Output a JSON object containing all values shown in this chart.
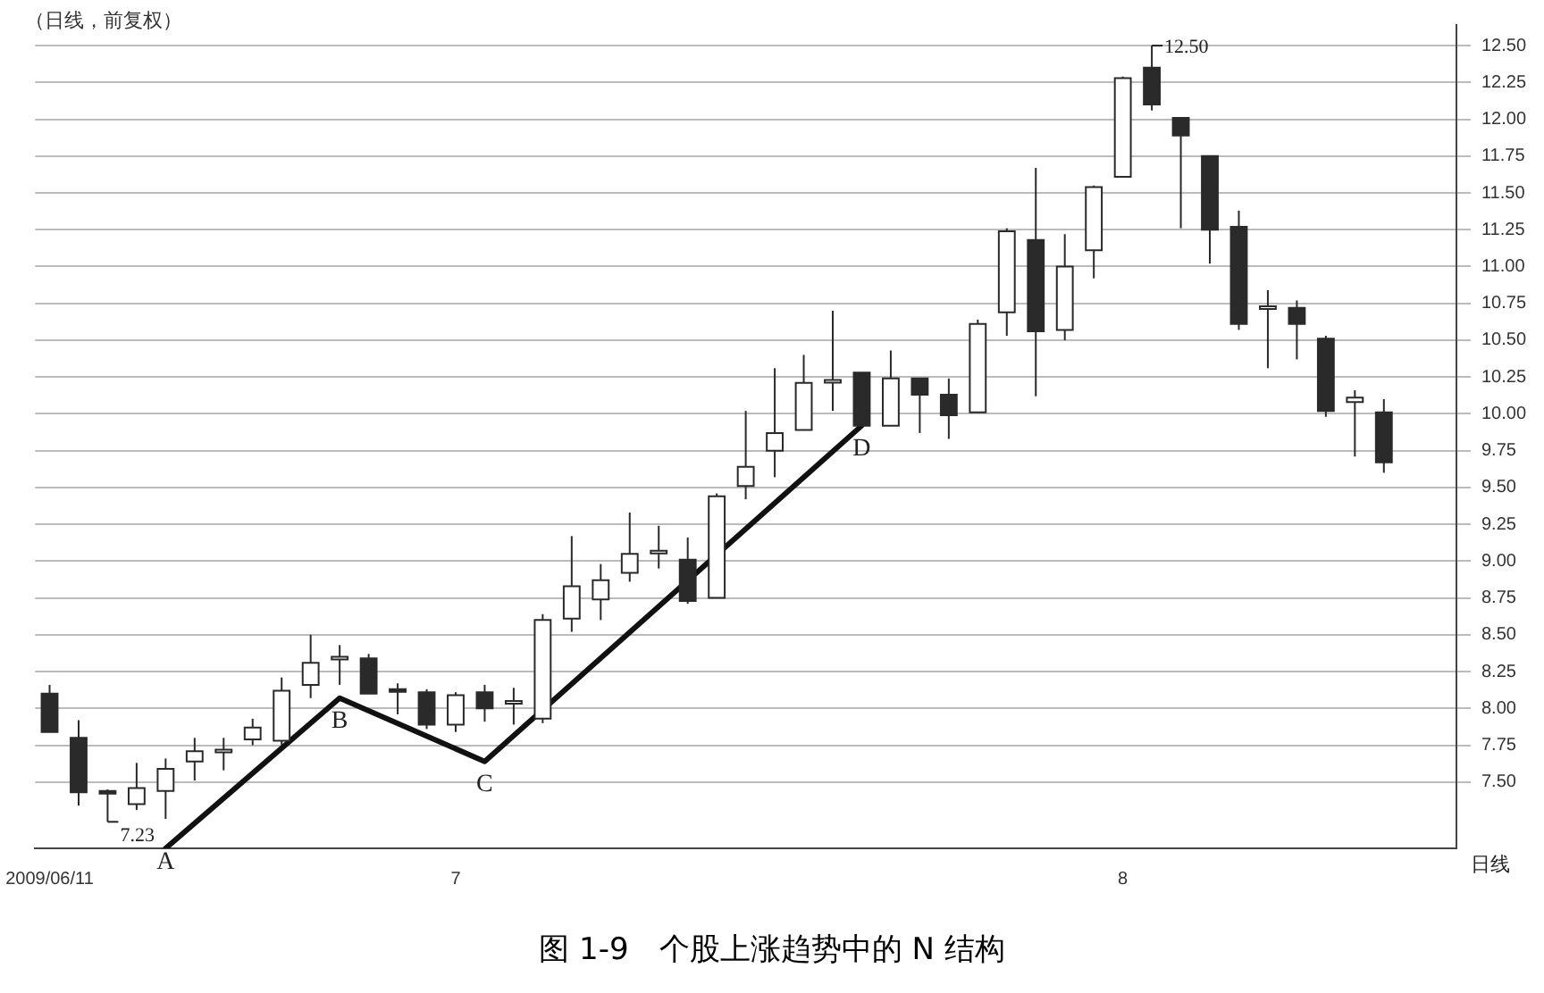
{
  "chart_data": {
    "type": "candlestick",
    "title": "（日线，前复权）",
    "xlabel": "日线",
    "categories": [
      "2009/06/11",
      null,
      null,
      null,
      null,
      null,
      null,
      null,
      null,
      null,
      null,
      null,
      null,
      null,
      "7",
      null,
      null,
      null,
      null,
      null,
      null,
      null,
      null,
      null,
      null,
      null,
      null,
      null,
      null,
      null,
      null,
      null,
      null,
      null,
      null,
      null,
      null,
      "8",
      null,
      null,
      null,
      null,
      null,
      null,
      null,
      null,
      null
    ],
    "series": [
      {
        "colors": [
          "#2a2a2a",
          "#2a2a2a",
          "#2a2a2a",
          "#ffffff",
          "#ffffff",
          "#ffffff",
          "#ffffff",
          "#ffffff",
          "#ffffff",
          "#ffffff",
          "#ffffff",
          "#2a2a2a",
          "#2a2a2a",
          "#2a2a2a",
          "#ffffff",
          "#2a2a2a",
          "#ffffff",
          "#ffffff",
          "#ffffff",
          "#ffffff",
          "#ffffff",
          "#ffffff",
          "#2a2a2a",
          "#ffffff",
          "#ffffff",
          "#ffffff",
          "#ffffff",
          "#ffffff",
          "#2a2a2a",
          "#ffffff",
          "#2a2a2a",
          "#2a2a2a",
          "#ffffff",
          "#ffffff",
          "#2a2a2a",
          "#ffffff",
          "#ffffff",
          "#ffffff",
          "#2a2a2a",
          "#2a2a2a",
          "#2a2a2a",
          "#2a2a2a",
          "#ffffff",
          "#2a2a2a",
          "#2a2a2a",
          "#ffffff",
          "#2a2a2a"
        ],
        "ohlc": [
          [
            8.1,
            8.16,
            7.84,
            7.84
          ],
          [
            7.8,
            7.92,
            7.34,
            7.43
          ],
          [
            7.44,
            7.45,
            7.23,
            7.43
          ],
          [
            7.35,
            7.63,
            7.31,
            7.46
          ],
          [
            7.44,
            7.66,
            7.25,
            7.59
          ],
          [
            7.64,
            7.8,
            7.51,
            7.71
          ],
          [
            7.71,
            7.8,
            7.58,
            7.72
          ],
          [
            7.79,
            7.93,
            7.75,
            7.87
          ],
          [
            7.78,
            8.21,
            7.75,
            8.12
          ],
          [
            8.16,
            8.5,
            8.07,
            8.31
          ],
          [
            8.34,
            8.43,
            8.16,
            8.35
          ],
          [
            8.34,
            8.37,
            8.1,
            8.1
          ],
          [
            8.13,
            8.17,
            7.96,
            8.12
          ],
          [
            8.11,
            8.13,
            7.86,
            7.89
          ],
          [
            7.89,
            8.11,
            7.84,
            8.09
          ],
          [
            8.11,
            8.16,
            7.91,
            8.0
          ],
          [
            8.04,
            8.14,
            7.89,
            8.05
          ],
          [
            7.93,
            8.64,
            7.9,
            8.6
          ],
          [
            8.61,
            9.17,
            8.52,
            8.83
          ],
          [
            8.74,
            8.98,
            8.6,
            8.87
          ],
          [
            8.92,
            9.33,
            8.86,
            9.05
          ],
          [
            9.06,
            9.24,
            8.95,
            9.07
          ],
          [
            9.01,
            9.16,
            8.71,
            8.73
          ],
          [
            8.75,
            9.46,
            8.75,
            9.44
          ],
          [
            9.51,
            10.02,
            9.42,
            9.64
          ],
          [
            9.75,
            10.31,
            9.57,
            9.87
          ],
          [
            9.89,
            10.4,
            9.89,
            10.21
          ],
          [
            10.23,
            10.7,
            10.02,
            10.23
          ],
          [
            10.28,
            10.28,
            9.92,
            9.92
          ],
          [
            9.92,
            10.43,
            9.92,
            10.24
          ],
          [
            10.24,
            10.24,
            9.87,
            10.13
          ],
          [
            10.13,
            10.24,
            9.83,
            9.99
          ],
          [
            10.01,
            10.64,
            10.01,
            10.61
          ],
          [
            10.69,
            11.26,
            10.53,
            11.24
          ],
          [
            11.18,
            11.67,
            10.12,
            10.56
          ],
          [
            10.57,
            11.22,
            10.5,
            11.0
          ],
          [
            11.11,
            11.55,
            10.92,
            11.54
          ],
          [
            11.61,
            12.29,
            11.61,
            12.28
          ],
          [
            12.35,
            12.5,
            12.06,
            12.1
          ],
          [
            12.01,
            12.01,
            11.26,
            11.89
          ],
          [
            11.75,
            11.75,
            11.02,
            11.25
          ],
          [
            11.27,
            11.38,
            10.57,
            10.61
          ],
          [
            10.73,
            10.84,
            10.31,
            10.73
          ],
          [
            10.72,
            10.77,
            10.37,
            10.61
          ],
          [
            10.51,
            10.53,
            9.98,
            10.02
          ],
          [
            10.08,
            10.16,
            9.71,
            10.11
          ],
          [
            10.01,
            10.1,
            9.6,
            9.67
          ]
        ]
      },
      {
        "type": "line",
        "color": "#111111",
        "values": [
          null,
          null,
          null,
          null,
          7.05,
          null,
          null,
          null,
          null,
          null,
          8.07,
          null,
          null,
          null,
          null,
          7.64,
          null,
          null,
          null,
          null,
          null,
          null,
          null,
          null,
          null,
          null,
          null,
          null,
          9.92,
          null,
          null,
          null,
          null,
          null,
          null,
          null,
          null,
          null,
          null,
          null,
          null,
          null,
          null,
          null,
          null,
          null,
          null
        ]
      }
    ],
    "ylim": [
      7.05,
      12.64
    ],
    "yticks": [
      {
        "value": 7.5,
        "label": "7.50"
      },
      {
        "value": 7.75,
        "label": "7.75"
      },
      {
        "value": 8,
        "label": "8.00"
      },
      {
        "value": 8.25,
        "label": "8.25"
      },
      {
        "value": 8.5,
        "label": "8.50"
      },
      {
        "value": 8.75,
        "label": "8.75"
      },
      {
        "value": 9,
        "label": "9.00"
      },
      {
        "value": 9.25,
        "label": "9.25"
      },
      {
        "value": 9.5,
        "label": "9.50"
      },
      {
        "value": 9.75,
        "label": "9.75"
      },
      {
        "value": 10,
        "label": "10.00"
      },
      {
        "value": 10.25,
        "label": "10.25"
      },
      {
        "value": 10.5,
        "label": "10.50"
      },
      {
        "value": 10.75,
        "label": "10.75"
      },
      {
        "value": 11,
        "label": "11.00"
      },
      {
        "value": 11.25,
        "label": "11.25"
      },
      {
        "value": 11.5,
        "label": "11.50"
      },
      {
        "value": 11.75,
        "label": "11.75"
      },
      {
        "value": 12,
        "label": "12.00"
      },
      {
        "value": 12.25,
        "label": "12.25"
      },
      {
        "value": 12.5,
        "label": "12.50"
      }
    ],
    "grid": "y",
    "legend": false,
    "marker": "none",
    "line_style": "solid",
    "annotations": [
      "A",
      "B",
      "C",
      "D",
      "7.23",
      "12.50",
      "图 1-9　个股上涨趋势中的 N 结构"
    ]
  }
}
